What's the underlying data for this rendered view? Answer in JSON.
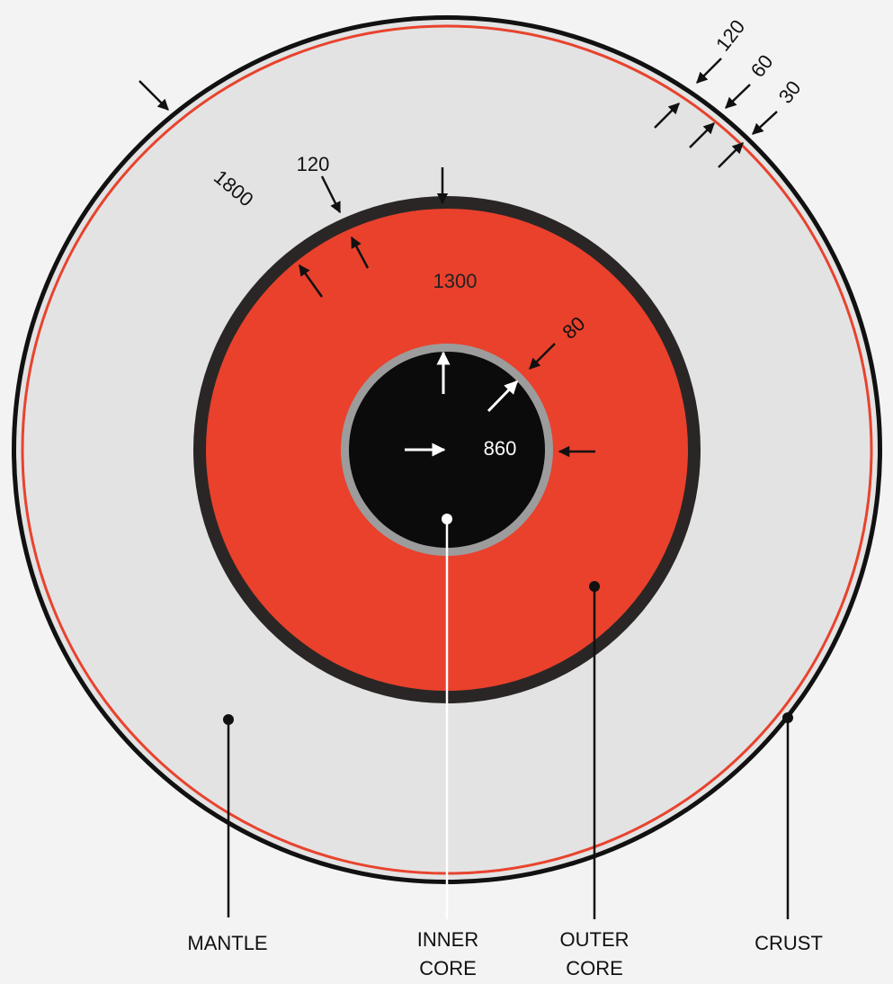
{
  "labels": {
    "mantle": "MANTLE",
    "inner_core_line1": "INNER",
    "inner_core_line2": "CORE",
    "outer_core_line1": "OUTER",
    "outer_core_line2": "CORE",
    "crust": "CRUST"
  },
  "thicknesses": {
    "mantle": "1800",
    "mantle_outer_core_boundary": "120",
    "outer_core": "1300",
    "inner_core_boundary": "80",
    "inner_core": "860",
    "upper_layer_a": "120",
    "upper_layer_b": "60",
    "crust": "30"
  },
  "colors": {
    "mantle": "#e3e3e4",
    "outer_core": "#e9412c",
    "inner_core": "#0c0b0b",
    "boundary_dark": "#2a2626",
    "inner_boundary_gray": "#9c9c9c",
    "crust_red_line": "#e8432d",
    "outline": "#111111"
  }
}
